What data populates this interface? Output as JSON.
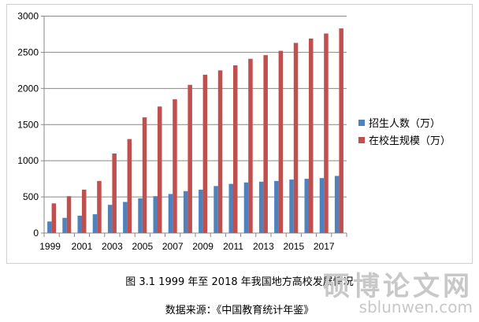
{
  "chart_data": {
    "type": "bar",
    "title": "",
    "categories": [
      "1999",
      "2000",
      "2001",
      "2002",
      "2003",
      "2004",
      "2005",
      "2006",
      "2007",
      "2008",
      "2009",
      "2010",
      "2011",
      "2012",
      "2013",
      "2014",
      "2015",
      "2016",
      "2017",
      "2018"
    ],
    "tick_labels": [
      "1999",
      "2001",
      "2003",
      "2005",
      "2007",
      "2009",
      "2011",
      "2013",
      "2015",
      "2017"
    ],
    "y_ticks": [
      "0",
      "500",
      "1000",
      "1500",
      "2000",
      "2500",
      "3000"
    ],
    "ylim": [
      0,
      3000
    ],
    "grid": true,
    "legend_position": "right",
    "series": [
      {
        "name": "招生人数（万）",
        "color": "#4f81bd",
        "values": [
          160,
          210,
          240,
          260,
          390,
          430,
          480,
          510,
          540,
          580,
          600,
          650,
          680,
          700,
          710,
          720,
          740,
          750,
          760,
          790
        ]
      },
      {
        "name": "在校生规模（万）",
        "color": "#c0504d",
        "values": [
          410,
          510,
          600,
          720,
          1100,
          1300,
          1600,
          1750,
          1850,
          2050,
          2190,
          2250,
          2320,
          2410,
          2460,
          2520,
          2630,
          2690,
          2760,
          2830
        ]
      }
    ]
  },
  "caption": "图 3.1  1999 年至 2018 年我国地方高校发展情况",
  "source": "数据来源：《中国教育统计年鉴》",
  "watermark": {
    "line1": "硕博论文网",
    "line2": "sblunwen.com"
  }
}
